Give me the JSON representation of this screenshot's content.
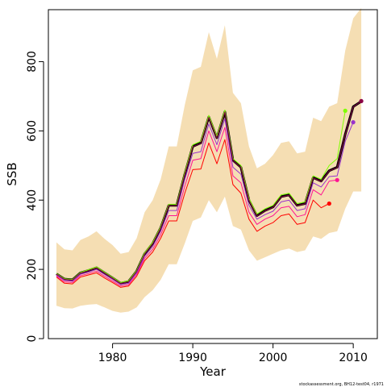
{
  "chart_data": {
    "type": "line",
    "title": "",
    "xlabel": "Year",
    "ylabel": "SSB",
    "xlim": [
      1972,
      2013
    ],
    "ylim": [
      0,
      950
    ],
    "x_ticks": [
      1980,
      1990,
      2000,
      2010
    ],
    "y_ticks": [
      0,
      200,
      400,
      600,
      800
    ],
    "grid": false,
    "legend": "none",
    "footnote": "stockassessment.org, BH12-test04, r1971",
    "confidence_band": {
      "color": "#f5deb3",
      "x": [
        1973,
        1974,
        1975,
        1976,
        1977,
        1978,
        1979,
        1980,
        1981,
        1982,
        1983,
        1984,
        1985,
        1986,
        1987,
        1988,
        1989,
        1990,
        1991,
        1992,
        1993,
        1994,
        1995,
        1996,
        1997,
        1998,
        1999,
        2000,
        2001,
        2002,
        2003,
        2004,
        2005,
        2006,
        2007,
        2008,
        2009,
        2010,
        2011
      ],
      "lower": [
        95,
        88,
        87,
        95,
        98,
        100,
        90,
        80,
        75,
        78,
        90,
        120,
        140,
        170,
        215,
        215,
        275,
        340,
        350,
        400,
        365,
        410,
        325,
        315,
        255,
        225,
        235,
        245,
        255,
        260,
        250,
        255,
        295,
        288,
        305,
        310,
        375,
        425,
        425
      ],
      "upper": [
        278,
        258,
        255,
        285,
        295,
        310,
        288,
        270,
        245,
        250,
        290,
        365,
        400,
        460,
        555,
        555,
        675,
        775,
        785,
        885,
        808,
        905,
        710,
        680,
        555,
        492,
        505,
        530,
        565,
        570,
        535,
        540,
        638,
        628,
        670,
        680,
        832,
        925,
        955
      ]
    },
    "series": [
      {
        "color": "#000000",
        "x": [
          1973,
          1974,
          1975,
          1976,
          1977,
          1978,
          1979,
          1980,
          1981,
          1982,
          1983,
          1984,
          1985,
          1986,
          1987,
          1988,
          1989,
          1990,
          1991,
          1992,
          1993,
          1994,
          1995,
          1996,
          1997,
          1998,
          1999,
          2000,
          2001,
          2002,
          2003,
          2004,
          2005,
          2006,
          2007,
          2008,
          2009,
          2010,
          2011
        ],
        "values": [
          187,
          172,
          170,
          190,
          197,
          205,
          190,
          175,
          160,
          165,
          195,
          245,
          275,
          320,
          385,
          385,
          475,
          555,
          565,
          640,
          580,
          655,
          515,
          495,
          400,
          355,
          370,
          380,
          410,
          415,
          385,
          390,
          465,
          455,
          485,
          495,
          590,
          670,
          685
        ]
      },
      {
        "color": "#ff0000",
        "x": [
          1973,
          1974,
          1975,
          1976,
          1977,
          1978,
          1979,
          1980,
          1981,
          1982,
          1983,
          1984,
          1985,
          1986,
          1987,
          1988,
          1989,
          1990,
          1991,
          1992,
          1993,
          1994,
          1995,
          1996,
          1997,
          1998,
          1999,
          2000,
          2001,
          2002,
          2003,
          2004,
          2005,
          2006,
          2007
        ],
        "values": [
          178,
          160,
          158,
          178,
          184,
          190,
          175,
          162,
          148,
          152,
          180,
          225,
          250,
          290,
          340,
          340,
          420,
          488,
          490,
          565,
          505,
          575,
          445,
          420,
          345,
          310,
          325,
          335,
          355,
          360,
          330,
          335,
          400,
          378,
          390
        ]
      },
      {
        "color": "#ff1493",
        "x": [
          1973,
          1974,
          1975,
          1976,
          1977,
          1978,
          1979,
          1980,
          1981,
          1982,
          1983,
          1984,
          1985,
          1986,
          1987,
          1988,
          1989,
          1990,
          1991,
          1992,
          1993,
          1994,
          1995,
          1996,
          1997,
          1998,
          1999,
          2000,
          2001,
          2002,
          2003,
          2004,
          2005,
          2006,
          2007,
          2008
        ],
        "values": [
          181,
          164,
          162,
          182,
          188,
          195,
          180,
          166,
          152,
          156,
          185,
          232,
          258,
          300,
          355,
          355,
          440,
          515,
          520,
          600,
          540,
          610,
          470,
          450,
          365,
          330,
          345,
          355,
          378,
          382,
          352,
          358,
          430,
          415,
          455,
          458
        ]
      },
      {
        "color": "#7fff00",
        "x": [
          1973,
          1974,
          1975,
          1976,
          1977,
          1978,
          1979,
          1980,
          1981,
          1982,
          1983,
          1984,
          1985,
          1986,
          1987,
          1988,
          1989,
          1990,
          1991,
          1992,
          1993,
          1994,
          1995,
          1996,
          1997,
          1998,
          1999,
          2000,
          2001,
          2002,
          2003,
          2004,
          2005,
          2006,
          2007,
          2008,
          2009
        ],
        "values": [
          188,
          173,
          171,
          191,
          199,
          207,
          192,
          177,
          162,
          167,
          197,
          248,
          278,
          323,
          388,
          388,
          480,
          560,
          570,
          645,
          585,
          660,
          520,
          500,
          405,
          360,
          375,
          385,
          415,
          420,
          390,
          395,
          470,
          460,
          500,
          520,
          658
        ]
      },
      {
        "color": "#9932cc",
        "x": [
          1973,
          1974,
          1975,
          1976,
          1977,
          1978,
          1979,
          1980,
          1981,
          1982,
          1983,
          1984,
          1985,
          1986,
          1987,
          1988,
          1989,
          1990,
          1991,
          1992,
          1993,
          1994,
          1995,
          1996,
          1997,
          1998,
          1999,
          2000,
          2001,
          2002,
          2003,
          2004,
          2005,
          2006,
          2007,
          2008,
          2009,
          2010
        ],
        "values": [
          184,
          168,
          166,
          186,
          192,
          200,
          185,
          171,
          156,
          160,
          190,
          238,
          266,
          310,
          370,
          370,
          460,
          535,
          540,
          620,
          560,
          635,
          495,
          475,
          385,
          345,
          358,
          368,
          395,
          400,
          370,
          375,
          450,
          438,
          468,
          470,
          570,
          625
        ]
      },
      {
        "color": "#8b0045",
        "x": [
          1973,
          1974,
          1975,
          1976,
          1977,
          1978,
          1979,
          1980,
          1981,
          1982,
          1983,
          1984,
          1985,
          1986,
          1987,
          1988,
          1989,
          1990,
          1991,
          1992,
          1993,
          1994,
          1995,
          1996,
          1997,
          1998,
          1999,
          2000,
          2001,
          2002,
          2003,
          2004,
          2005,
          2006,
          2007,
          2008,
          2009,
          2010,
          2011
        ],
        "values": [
          186,
          171,
          169,
          189,
          196,
          204,
          189,
          174,
          159,
          164,
          194,
          244,
          274,
          319,
          384,
          384,
          474,
          554,
          564,
          639,
          579,
          654,
          514,
          494,
          399,
          354,
          369,
          379,
          409,
          414,
          384,
          389,
          464,
          454,
          484,
          494,
          589,
          669,
          686
        ]
      }
    ],
    "terminal_points": [
      {
        "x": 2007,
        "y": 390,
        "color": "#ff0000"
      },
      {
        "x": 2008,
        "y": 458,
        "color": "#ff1493"
      },
      {
        "x": 2009,
        "y": 658,
        "color": "#7fff00"
      },
      {
        "x": 2010,
        "y": 625,
        "color": "#9932cc"
      },
      {
        "x": 2011,
        "y": 686,
        "color": "#8b0045"
      }
    ]
  }
}
